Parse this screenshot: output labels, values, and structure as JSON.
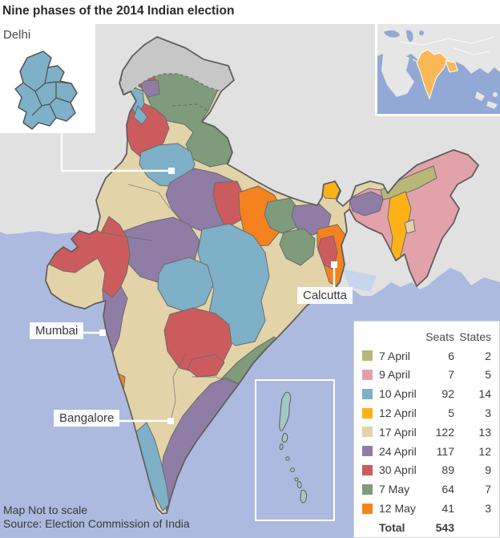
{
  "title": "Nine phases of the 2014 Indian election",
  "map_labels": {
    "delhi": "Delhi",
    "mumbai": "Mumbai",
    "bangalore": "Bangalore",
    "calcutta": "Calcutta"
  },
  "legend": {
    "headers": {
      "seats": "Seats",
      "states": "States"
    },
    "items": [
      {
        "label": "7 April",
        "seats": 6,
        "states": 2,
        "color": "#b7b778"
      },
      {
        "label": "9 April",
        "seats": 7,
        "states": 5,
        "color": "#e2a2a9"
      },
      {
        "label": "10 April",
        "seats": 92,
        "states": 14,
        "color": "#7eb0c7"
      },
      {
        "label": "12 April",
        "seats": 5,
        "states": 3,
        "color": "#fcb216"
      },
      {
        "label": "17 April",
        "seats": 122,
        "states": 13,
        "color": "#e3d3a9"
      },
      {
        "label": "24 April",
        "seats": 117,
        "states": 12,
        "color": "#8f7da6"
      },
      {
        "label": "30 April",
        "seats": 89,
        "states": 9,
        "color": "#cc5b5e"
      },
      {
        "label": "7 May",
        "seats": 64,
        "states": 7,
        "color": "#7e9b7c"
      },
      {
        "label": "12 May",
        "seats": 41,
        "states": 3,
        "color": "#f5821f"
      }
    ],
    "total_label": "Total",
    "total_seats": 543
  },
  "footer": {
    "note": "Map Not to scale",
    "source": "Source: Election Commission of India"
  },
  "map_colors": {
    "sea": "#abbade",
    "neighbor_land": "#e1e1e1",
    "disputed": "#c7c7c7",
    "delta_water": "#c6d6ec",
    "border": "#5f5f5f",
    "islands": "#a3c8c4",
    "locator_sea": "#92a8d5",
    "locator_land": "#e6e6e6",
    "locator_india": "#f9b855"
  }
}
